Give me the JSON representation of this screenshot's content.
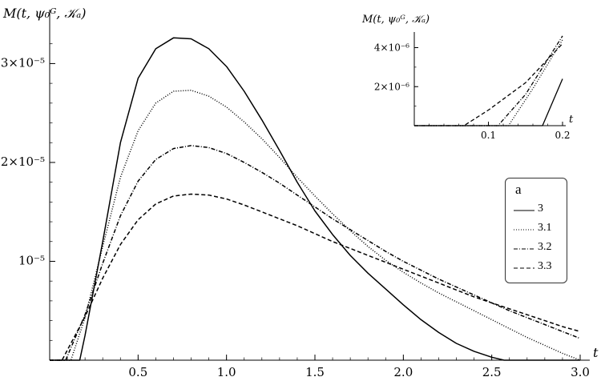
{
  "chart_data": [
    {
      "type": "line",
      "title": "",
      "ylabel": "M(t, ψ₀ᴳ, 𝒦ₐ)",
      "xlabel": "t",
      "xlim": [
        0,
        3.0
      ],
      "ylim": [
        0,
        3.4e-05
      ],
      "x_ticks": [
        "0.5",
        "1.0",
        "1.5",
        "2.0",
        "2.5",
        "3.0"
      ],
      "y_ticks": [
        "10⁻⁵",
        "2×10⁻⁵",
        "3×10⁻⁵"
      ],
      "grid": false,
      "legend": {
        "title": "a",
        "placement": "right"
      },
      "series": [
        {
          "name": "3",
          "style": "solid",
          "x": [
            0,
            0.17,
            0.2,
            0.3,
            0.4,
            0.5,
            0.6,
            0.7,
            0.8,
            0.9,
            1.0,
            1.1,
            1.2,
            1.3,
            1.4,
            1.5,
            1.6,
            1.7,
            1.8,
            1.9,
            2.0,
            2.1,
            2.2,
            2.3,
            2.4,
            2.5,
            2.57,
            2.7,
            2.8,
            2.9,
            3.0
          ],
          "y": [
            0,
            0,
            2.5e-06,
            1.2e-05,
            2.2e-05,
            2.85e-05,
            3.15e-05,
            3.26e-05,
            3.25e-05,
            3.15e-05,
            2.97e-05,
            2.72e-05,
            2.43e-05,
            2.12e-05,
            1.8e-05,
            1.51e-05,
            1.27e-05,
            1.06e-05,
            8.8e-06,
            7.2e-06,
            5.6e-06,
            4.1e-06,
            2.8e-06,
            1.7e-06,
            9e-07,
            3e-07,
            0,
            0,
            0,
            0,
            0
          ]
        },
        {
          "name": "3.1",
          "style": "dotted",
          "x": [
            0,
            0.12,
            0.2,
            0.3,
            0.4,
            0.5,
            0.6,
            0.7,
            0.8,
            0.9,
            1.0,
            1.1,
            1.2,
            1.3,
            1.4,
            1.5,
            1.6,
            1.7,
            1.8,
            1.9,
            2.0,
            2.1,
            2.2,
            2.3,
            2.4,
            2.5,
            2.6,
            2.7,
            2.8,
            2.9,
            3.0
          ],
          "y": [
            0,
            0,
            4.3e-06,
            1.15e-05,
            1.85e-05,
            2.32e-05,
            2.6e-05,
            2.72e-05,
            2.73e-05,
            2.67e-05,
            2.56e-05,
            2.41e-05,
            2.24e-05,
            2.05e-05,
            1.85e-05,
            1.66e-05,
            1.48e-05,
            1.31e-05,
            1.15e-05,
            1.01e-05,
            8.9e-06,
            7.8e-06,
            6.8e-06,
            5.9e-06,
            5e-06,
            4.1e-06,
            3.2e-06,
            2.3e-06,
            1.5e-06,
            7e-07,
            0
          ]
        },
        {
          "name": "3.2",
          "style": "dashdot",
          "x": [
            0,
            0.09,
            0.2,
            0.3,
            0.4,
            0.5,
            0.6,
            0.7,
            0.8,
            0.9,
            1.0,
            1.1,
            1.2,
            1.3,
            1.4,
            1.5,
            1.6,
            1.7,
            1.8,
            1.9,
            2.0,
            2.1,
            2.2,
            2.3,
            2.4,
            2.5,
            2.6,
            2.7,
            2.8,
            2.9,
            3.0
          ],
          "y": [
            0,
            0,
            4.6e-06,
            9.8e-06,
            1.46e-05,
            1.81e-05,
            2.03e-05,
            2.14e-05,
            2.17e-05,
            2.15e-05,
            2.09e-05,
            2e-05,
            1.9e-05,
            1.79e-05,
            1.67e-05,
            1.55e-05,
            1.43e-05,
            1.32e-05,
            1.21e-05,
            1.1e-05,
            1e-05,
            9.1e-06,
            8.2e-06,
            7.4e-06,
            6.6e-06,
            5.8e-06,
            5e-06,
            4.3e-06,
            3.6e-06,
            2.9e-06,
            2.2e-06
          ]
        },
        {
          "name": "3.3",
          "style": "dashed",
          "x": [
            0,
            0.07,
            0.2,
            0.3,
            0.4,
            0.5,
            0.6,
            0.7,
            0.8,
            0.9,
            1.0,
            1.1,
            1.2,
            1.3,
            1.4,
            1.5,
            1.6,
            1.7,
            1.8,
            1.9,
            2.0,
            2.1,
            2.2,
            2.3,
            2.4,
            2.5,
            2.6,
            2.7,
            2.8,
            2.9,
            3.0
          ],
          "y": [
            0,
            0,
            4.4e-06,
            8.3e-06,
            1.17e-05,
            1.42e-05,
            1.58e-05,
            1.66e-05,
            1.68e-05,
            1.67e-05,
            1.63e-05,
            1.57e-05,
            1.5e-05,
            1.43e-05,
            1.36e-05,
            1.28e-05,
            1.2e-05,
            1.13e-05,
            1.06e-05,
            9.9e-06,
            9.2e-06,
            8.5e-06,
            7.8e-06,
            7.1e-06,
            6.4e-06,
            5.8e-06,
            5.2e-06,
            4.6e-06,
            4e-06,
            3.4e-06,
            2.9e-06
          ]
        }
      ]
    },
    {
      "type": "line",
      "title": "",
      "ylabel": "M(t, ψ₀ᴳ, 𝒦ₐ)",
      "xlabel": "t",
      "xlim": [
        0,
        0.2
      ],
      "ylim": [
        0,
        4.8e-06
      ],
      "x_ticks": [
        "0.1",
        "0.2"
      ],
      "y_ticks": [
        "2×10⁻⁶",
        "4×10⁻⁶"
      ],
      "grid": false,
      "series": [
        {
          "name": "3",
          "style": "solid",
          "x": [
            0,
            0.173,
            0.2
          ],
          "y": [
            0,
            0,
            2.4e-06
          ]
        },
        {
          "name": "3.1",
          "style": "dotted",
          "x": [
            0,
            0.127,
            0.16,
            0.2
          ],
          "y": [
            0,
            0,
            1.9e-06,
            4.4e-06
          ]
        },
        {
          "name": "3.2",
          "style": "dashdot",
          "x": [
            0,
            0.113,
            0.15,
            0.2
          ],
          "y": [
            0,
            0,
            1.6e-06,
            4.6e-06
          ]
        },
        {
          "name": "3.3",
          "style": "dashed",
          "x": [
            0,
            0.067,
            0.1,
            0.15,
            0.2
          ],
          "y": [
            0,
            0,
            8e-07,
            2.2e-06,
            4.2e-06
          ]
        }
      ]
    }
  ],
  "legend": {
    "title": "a",
    "items": [
      "3",
      "3.1",
      "3.2",
      "3.3"
    ]
  }
}
